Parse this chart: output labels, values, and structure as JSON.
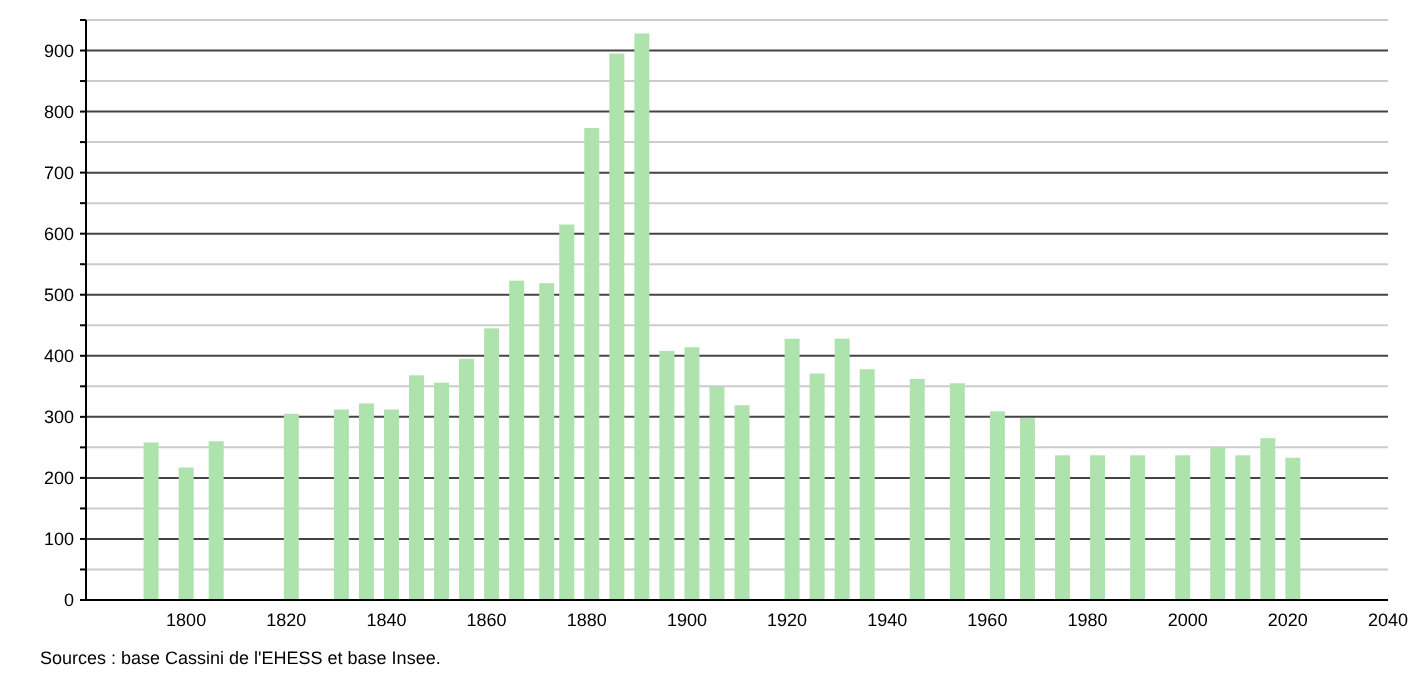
{
  "chart_data": {
    "type": "bar",
    "x": [
      1793,
      1800,
      1806,
      1821,
      1831,
      1836,
      1841,
      1846,
      1851,
      1856,
      1861,
      1866,
      1872,
      1876,
      1881,
      1886,
      1891,
      1896,
      1901,
      1906,
      1911,
      1921,
      1926,
      1931,
      1936,
      1946,
      1954,
      1962,
      1968,
      1975,
      1982,
      1990,
      1999,
      2006,
      2011,
      2016,
      2021
    ],
    "values": [
      258,
      217,
      260,
      305,
      312,
      322,
      312,
      368,
      356,
      395,
      445,
      523,
      519,
      615,
      773,
      895,
      928,
      408,
      414,
      349,
      319,
      428,
      371,
      428,
      378,
      362,
      355,
      309,
      298,
      237,
      237,
      237,
      237,
      250,
      237,
      265,
      233
    ],
    "color": "#aee3ae",
    "xlim": [
      1780,
      2040
    ],
    "xticks": [
      1800,
      1820,
      1840,
      1860,
      1880,
      1900,
      1920,
      1940,
      1960,
      1980,
      2000,
      2020,
      2040
    ],
    "ylim": [
      0,
      950
    ],
    "yticks": [
      0,
      {
        "value": 50,
        "label": null
      },
      100,
      {
        "value": 150,
        "label": null
      },
      200,
      {
        "value": 250,
        "label": null
      },
      300,
      {
        "value": 350,
        "label": null
      },
      400,
      {
        "value": 450,
        "label": null
      },
      500,
      {
        "value": 550,
        "label": null
      },
      600,
      {
        "value": 650,
        "label": null
      },
      700,
      {
        "value": 750,
        "label": null
      },
      800,
      {
        "value": 850,
        "label": null
      },
      900,
      {
        "value": 950,
        "label": null
      }
    ],
    "grid": "y",
    "annotations": [
      "Sources : base Cassini de l'EHESS et base Insee."
    ]
  }
}
